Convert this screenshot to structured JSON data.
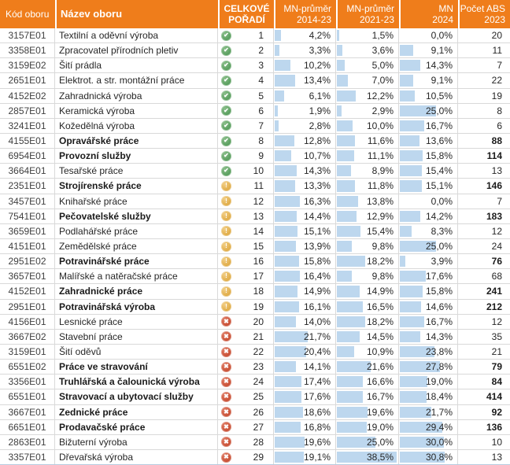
{
  "colors": {
    "header_bg": "#ef7d1b",
    "header_text": "#ffffff",
    "gridline": "#d9d9d9",
    "data_bar": "#bdd7ee",
    "icon_green": "#3f8e47",
    "icon_amber": "#d79b28",
    "icon_red": "#be3a1d"
  },
  "bar_scale_max_percent": 40,
  "header": {
    "code": "Kód oboru",
    "name": "Název oboru",
    "rank_line1": "CELKOVÉ",
    "rank_line2": "POŘADÍ",
    "mn1_line1": "MN-průměr",
    "mn1_line2": "2014-23",
    "mn2_line1": "MN-průměr",
    "mn2_line2": "2021-23",
    "mn3_line1": "MN",
    "mn3_line2": "2024",
    "abs_line1": "Počet ABS",
    "abs_line2": "2023"
  },
  "icon_glyphs": {
    "check": "✔",
    "warn": "!",
    "cross": "✖"
  },
  "icon_names": {
    "check": "green-check-icon",
    "warn": "amber-exclamation-icon",
    "cross": "red-cross-icon"
  },
  "rows": [
    {
      "code": "3157E01",
      "name": "Textilní a oděvní výroba",
      "bold": false,
      "icon": "check",
      "rank": "1",
      "mn1": "4,2%",
      "mn2": "1,5%",
      "mn3": "0,0%",
      "abs": "20"
    },
    {
      "code": "3358E01",
      "name": "Zpracovatel přírodních pletiv",
      "bold": false,
      "icon": "check",
      "rank": "2",
      "mn1": "3,3%",
      "mn2": "3,6%",
      "mn3": "9,1%",
      "abs": "11"
    },
    {
      "code": "3159E02",
      "name": "Šití prádla",
      "bold": false,
      "icon": "check",
      "rank": "3",
      "mn1": "10,2%",
      "mn2": "5,0%",
      "mn3": "14,3%",
      "abs": "7"
    },
    {
      "code": "2651E01",
      "name": "Elektrot. a str. montážní práce",
      "bold": false,
      "icon": "check",
      "rank": "4",
      "mn1": "13,4%",
      "mn2": "7,0%",
      "mn3": "9,1%",
      "abs": "22"
    },
    {
      "code": "4152E02",
      "name": "Zahradnická výroba",
      "bold": false,
      "icon": "check",
      "rank": "5",
      "mn1": "6,1%",
      "mn2": "12,2%",
      "mn3": "10,5%",
      "abs": "19"
    },
    {
      "code": "2857E01",
      "name": "Keramická výroba",
      "bold": false,
      "icon": "check",
      "rank": "6",
      "mn1": "1,9%",
      "mn2": "2,9%",
      "mn3": "25,0%",
      "abs": "8"
    },
    {
      "code": "3241E01",
      "name": "Kožedělná výroba",
      "bold": false,
      "icon": "check",
      "rank": "7",
      "mn1": "2,8%",
      "mn2": "10,0%",
      "mn3": "16,7%",
      "abs": "6"
    },
    {
      "code": "4155E01",
      "name": "Opravářské práce",
      "bold": true,
      "icon": "check",
      "rank": "8",
      "mn1": "12,8%",
      "mn2": "11,6%",
      "mn3": "13,6%",
      "abs": "88"
    },
    {
      "code": "6954E01",
      "name": "Provozní služby",
      "bold": true,
      "icon": "check",
      "rank": "9",
      "mn1": "10,7%",
      "mn2": "11,1%",
      "mn3": "15,8%",
      "abs": "114"
    },
    {
      "code": "3664E01",
      "name": "Tesařské práce",
      "bold": false,
      "icon": "check",
      "rank": "10",
      "mn1": "14,3%",
      "mn2": "8,9%",
      "mn3": "15,4%",
      "abs": "13"
    },
    {
      "code": "2351E01",
      "name": "Strojírenské práce",
      "bold": true,
      "icon": "warn",
      "rank": "11",
      "mn1": "13,3%",
      "mn2": "11,8%",
      "mn3": "15,1%",
      "abs": "146"
    },
    {
      "code": "3457E01",
      "name": "Knihařské práce",
      "bold": false,
      "icon": "warn",
      "rank": "12",
      "mn1": "16,3%",
      "mn2": "13,8%",
      "mn3": "0,0%",
      "abs": "7"
    },
    {
      "code": "7541E01",
      "name": "Pečovatelské služby",
      "bold": true,
      "icon": "warn",
      "rank": "13",
      "mn1": "14,4%",
      "mn2": "12,9%",
      "mn3": "14,2%",
      "abs": "183"
    },
    {
      "code": "3659E01",
      "name": "Podlahářské práce",
      "bold": false,
      "icon": "warn",
      "rank": "14",
      "mn1": "15,1%",
      "mn2": "15,4%",
      "mn3": "8,3%",
      "abs": "12"
    },
    {
      "code": "4151E01",
      "name": "Zemědělské práce",
      "bold": false,
      "icon": "warn",
      "rank": "15",
      "mn1": "13,9%",
      "mn2": "9,8%",
      "mn3": "25,0%",
      "abs": "24"
    },
    {
      "code": "2951E02",
      "name": "Potravinářské práce",
      "bold": true,
      "icon": "warn",
      "rank": "16",
      "mn1": "15,8%",
      "mn2": "18,2%",
      "mn3": "3,9%",
      "abs": "76"
    },
    {
      "code": "3657E01",
      "name": "Malířské a natěračské práce",
      "bold": false,
      "icon": "warn",
      "rank": "17",
      "mn1": "16,4%",
      "mn2": "9,8%",
      "mn3": "17,6%",
      "abs": "68"
    },
    {
      "code": "4152E01",
      "name": "Zahradnické práce",
      "bold": true,
      "icon": "warn",
      "rank": "18",
      "mn1": "14,9%",
      "mn2": "14,9%",
      "mn3": "15,8%",
      "abs": "241"
    },
    {
      "code": "2951E01",
      "name": "Potravinářská výroba",
      "bold": true,
      "icon": "warn",
      "rank": "19",
      "mn1": "16,1%",
      "mn2": "16,5%",
      "mn3": "14,6%",
      "abs": "212"
    },
    {
      "code": "4156E01",
      "name": "Lesnické práce",
      "bold": false,
      "icon": "cross",
      "rank": "20",
      "mn1": "14,0%",
      "mn2": "18,2%",
      "mn3": "16,7%",
      "abs": "12"
    },
    {
      "code": "3667E02",
      "name": "Stavební práce",
      "bold": false,
      "icon": "cross",
      "rank": "21",
      "mn1": "21,7%",
      "mn2": "14,5%",
      "mn3": "14,3%",
      "abs": "35"
    },
    {
      "code": "3159E01",
      "name": "Šití oděvů",
      "bold": false,
      "icon": "cross",
      "rank": "22",
      "mn1": "20,4%",
      "mn2": "10,9%",
      "mn3": "23,8%",
      "abs": "21"
    },
    {
      "code": "6551E02",
      "name": "Práce ve stravování",
      "bold": true,
      "icon": "cross",
      "rank": "23",
      "mn1": "14,1%",
      "mn2": "21,6%",
      "mn3": "27,8%",
      "abs": "79"
    },
    {
      "code": "3356E01",
      "name": "Truhlářská a čalounická výroba",
      "bold": true,
      "icon": "cross",
      "rank": "24",
      "mn1": "17,4%",
      "mn2": "16,6%",
      "mn3": "19,0%",
      "abs": "84"
    },
    {
      "code": "6551E01",
      "name": "Stravovací a ubytovací služby",
      "bold": true,
      "icon": "cross",
      "rank": "25",
      "mn1": "17,6%",
      "mn2": "16,7%",
      "mn3": "18,4%",
      "abs": "414"
    },
    {
      "code": "3667E01",
      "name": "Zednické práce",
      "bold": true,
      "icon": "cross",
      "rank": "26",
      "mn1": "18,6%",
      "mn2": "19,6%",
      "mn3": "21,7%",
      "abs": "92"
    },
    {
      "code": "6651E01",
      "name": "Prodavačské práce",
      "bold": true,
      "icon": "cross",
      "rank": "27",
      "mn1": "16,8%",
      "mn2": "19,0%",
      "mn3": "29,4%",
      "abs": "136"
    },
    {
      "code": "2863E01",
      "name": "Bižuterní výroba",
      "bold": false,
      "icon": "cross",
      "rank": "28",
      "mn1": "19,6%",
      "mn2": "25,0%",
      "mn3": "30,0%",
      "abs": "10"
    },
    {
      "code": "3357E01",
      "name": "Dřevařská výroba",
      "bold": false,
      "icon": "cross",
      "rank": "29",
      "mn1": "19,1%",
      "mn2": "38,5%",
      "mn3": "30,8%",
      "abs": "13"
    }
  ]
}
